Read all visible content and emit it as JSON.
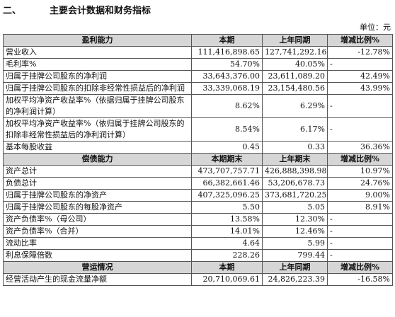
{
  "heading": {
    "number": "二、",
    "title": "主要会计数据和财务指标"
  },
  "unit": "单位：元",
  "sections": [
    {
      "header": [
        "盈利能力",
        "本期",
        "上年同期",
        "增减比例%"
      ],
      "rows": [
        [
          "营业收入",
          "111,416,898.65",
          "127,741,292.16",
          "-12.78%"
        ],
        [
          "毛利率%",
          "54.70%",
          "40.05%",
          "-"
        ],
        [
          "归属于挂牌公司股东的净利润",
          "33,643,376.00",
          "23,611,089.20",
          "42.49%"
        ],
        [
          "归属于挂牌公司股东的扣除非经常性损益后的净利润",
          "33,339,068.19",
          "23,154,480.56",
          "43.99%"
        ],
        [
          "加权平均净资产收益率%（依据归属于挂牌公司股东的净利润计算）",
          "8.62%",
          "6.29%",
          "-"
        ],
        [
          "加权平均净资产收益率%（依归属于挂牌公司股东的扣除非经常性损益后的净利润计算）",
          "8.54%",
          "6.17%",
          "-"
        ],
        [
          "基本每股收益",
          "0.45",
          "0.33",
          "36.36%"
        ]
      ]
    },
    {
      "header": [
        "偿债能力",
        "本期期末",
        "上年期末",
        "增减比例%"
      ],
      "rows": [
        [
          "资产总计",
          "473,707,757.71",
          "426,888,398.98",
          "10.97%"
        ],
        [
          "负债总计",
          "66,382,661.46",
          "53,206,678.73",
          "24.76%"
        ],
        [
          "归属于挂牌公司股东的净资产",
          "407,325,096.25",
          "373,681,720.25",
          "9.00%"
        ],
        [
          "归属于挂牌公司股东的每股净资产",
          "5.50",
          "5.05",
          "8.91%"
        ],
        [
          "资产负债率%（母公司）",
          "13.58%",
          "12.30%",
          "-"
        ],
        [
          "资产负债率%（合并）",
          "14.01%",
          "12.46%",
          "-"
        ],
        [
          "流动比率",
          "4.64",
          "5.99",
          "-"
        ],
        [
          "利息保障倍数",
          "228.26",
          "799.44",
          "-"
        ]
      ]
    },
    {
      "header": [
        "营运情况",
        "本期",
        "上年同期",
        "增减比例%"
      ],
      "rows": [
        [
          "经营活动产生的现金流量净额",
          "20,710,069.61",
          "24,826,223.39",
          "-16.58%"
        ]
      ]
    }
  ]
}
